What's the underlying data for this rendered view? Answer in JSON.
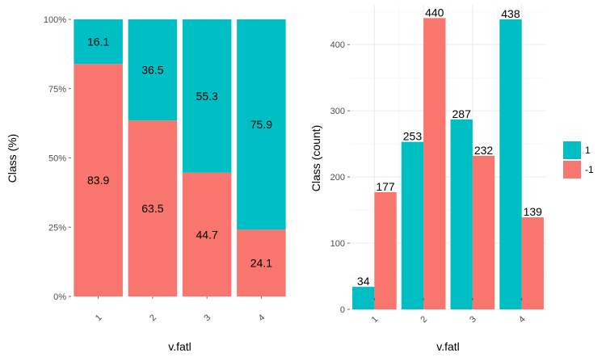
{
  "chart_data": [
    {
      "type": "bar",
      "stacking": "fill",
      "xlabel": "v.fatl",
      "ylabel": "Class  (%)",
      "categories": [
        "1",
        "2",
        "3",
        "4"
      ],
      "ylim": [
        0,
        100
      ],
      "yticks": [
        0,
        25,
        50,
        75,
        100
      ],
      "ytick_labels": [
        "0%",
        "25%",
        "50%",
        "75%",
        "100%"
      ],
      "series": [
        {
          "name": "-1",
          "values": [
            83.9,
            63.5,
            44.7,
            24.1
          ],
          "labels": [
            "83.9",
            "63.5",
            "44.7",
            "24.1"
          ],
          "color": "#F8766D"
        },
        {
          "name": "1",
          "values": [
            16.1,
            36.5,
            55.3,
            75.9
          ],
          "labels": [
            "16.1",
            "36.5",
            "55.3",
            "75.9"
          ],
          "color": "#00BFC4"
        }
      ],
      "grid": false
    },
    {
      "type": "bar",
      "stacking": "dodge",
      "xlabel": "v.fatl",
      "ylabel": "Class  (count)",
      "categories": [
        "1",
        "2",
        "3",
        "4"
      ],
      "ylim": [
        0,
        460
      ],
      "yticks": [
        0,
        100,
        200,
        300,
        400
      ],
      "ytick_labels": [
        "0",
        "100",
        "200",
        "300",
        "400"
      ],
      "series": [
        {
          "name": "1",
          "values": [
            34,
            253,
            287,
            438
          ],
          "labels": [
            "34",
            "253",
            "287",
            "438"
          ],
          "color": "#00BFC4"
        },
        {
          "name": "-1",
          "values": [
            177,
            440,
            232,
            139
          ],
          "labels": [
            "177",
            "440",
            "232",
            "139"
          ],
          "color": "#F8766D"
        }
      ],
      "grid": true
    }
  ],
  "legend": {
    "placement": "right",
    "entries": [
      {
        "label": "1",
        "color": "#00BFC4"
      },
      {
        "label": "-1",
        "color": "#F8766D"
      }
    ]
  }
}
